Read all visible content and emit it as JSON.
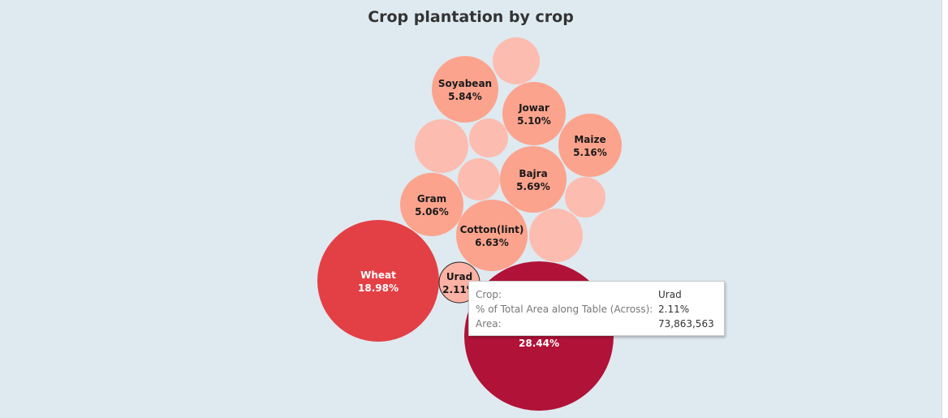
{
  "chart_data": {
    "type": "bubble",
    "title": "Crop plantation by crop",
    "bubbles": [
      {
        "crop": "Wheat",
        "percent": 18.98,
        "color": "#e34046",
        "label_color": "#ffffff"
      },
      {
        "crop": "Cotton(lint)",
        "percent": 6.63,
        "color": "#fca38d",
        "label_color": "#1a1a1a"
      },
      {
        "crop": "Soyabean",
        "percent": 5.84,
        "color": "#fca38d",
        "label_color": "#1a1a1a"
      },
      {
        "crop": "Bajra",
        "percent": 5.69,
        "color": "#fca38d",
        "label_color": "#1a1a1a"
      },
      {
        "crop": "Maize",
        "percent": 5.16,
        "color": "#fca38d",
        "label_color": "#1a1a1a"
      },
      {
        "crop": "Jowar",
        "percent": 5.1,
        "color": "#fca38d",
        "label_color": "#1a1a1a"
      },
      {
        "crop": "Gram",
        "percent": 5.06,
        "color": "#fca38d",
        "label_color": "#1a1a1a"
      },
      {
        "crop": "Urad",
        "percent": 2.11,
        "color": "#fcb2a4",
        "label_color": "#1a1a1a",
        "selected": true
      },
      {
        "crop": "",
        "percent": 28.44,
        "color": "#b01238",
        "label_color": "#ffffff"
      },
      {
        "crop": "",
        "color": "#fdbcb0"
      },
      {
        "crop": "",
        "color": "#fdbcb0"
      },
      {
        "crop": "",
        "color": "#fdbcb0"
      },
      {
        "crop": "",
        "color": "#fdbcb0"
      },
      {
        "crop": "",
        "color": "#fdbcb0"
      },
      {
        "crop": "",
        "color": "#fdbcb0"
      },
      {
        "crop": "",
        "color": "#fdbcb0"
      }
    ]
  },
  "tooltip": {
    "rows": [
      {
        "key": "Crop:",
        "value": "Urad"
      },
      {
        "key": "% of Total Area along Table (Across):",
        "value": "2.11%"
      },
      {
        "key": "Area:",
        "value": "73,863,563"
      }
    ]
  }
}
